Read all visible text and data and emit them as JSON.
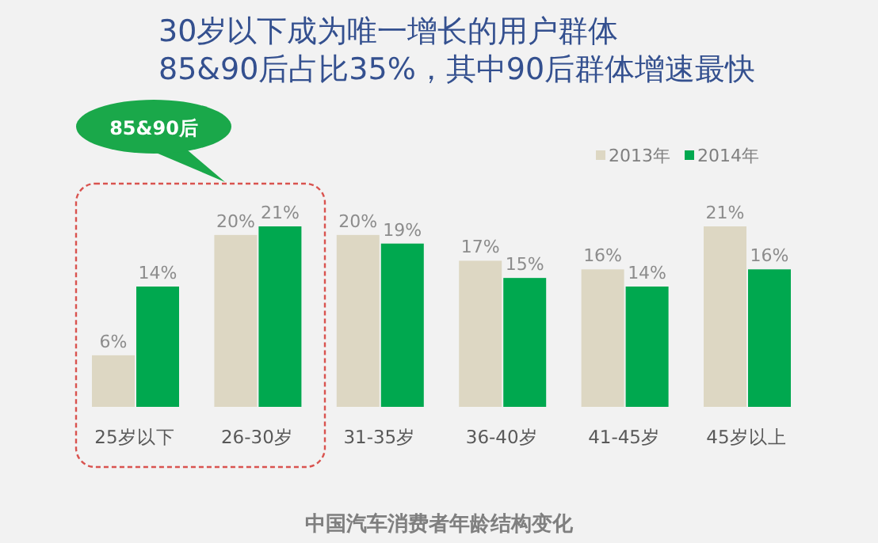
{
  "chart_data": {
    "type": "bar",
    "title": "30岁以下成为唯一增长的用户群体",
    "subtitle": "85&90后占比35%，其中90后群体增速最快",
    "categories": [
      "25岁以下",
      "26-30岁",
      "31-35岁",
      "36-40岁",
      "41-45岁",
      "45岁以上"
    ],
    "series": [
      {
        "name": "2013年",
        "color": "#ddd7c3",
        "values": [
          6,
          20,
          20,
          17,
          16,
          21
        ],
        "value_labels": [
          "6%",
          "20%",
          "20%",
          "17%",
          "16%",
          "21%"
        ]
      },
      {
        "name": "2014年",
        "color": "#00a84f",
        "values": [
          14,
          21,
          19,
          15,
          14,
          16
        ],
        "value_labels": [
          "14%",
          "21%",
          "19%",
          "15%",
          "14%",
          "16%"
        ]
      }
    ],
    "legend": "top right",
    "annotations": [
      "85&90后",
      "中国汽车消费者年龄结构变化"
    ]
  }
}
